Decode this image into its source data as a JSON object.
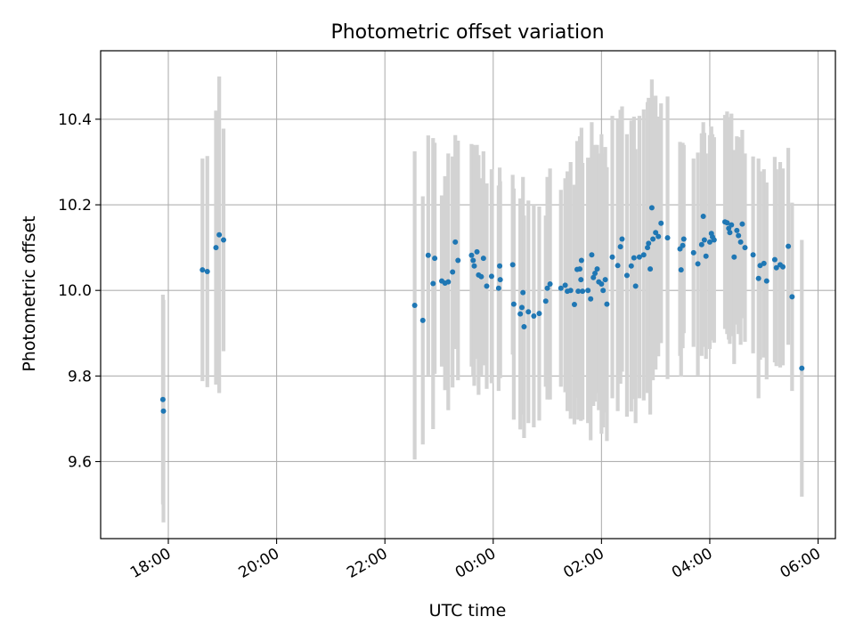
{
  "chart_data": {
    "type": "scatter",
    "title": "Photometric offset variation",
    "xlabel": "UTC time",
    "ylabel": "Photometric offset",
    "grid": true,
    "x_unit": "hours since 00:00 UTC",
    "xlim": [
      -7.25,
      6.32
    ],
    "ylim": [
      9.42,
      10.56
    ],
    "xticks": [
      {
        "value": -6,
        "label": "18:00"
      },
      {
        "value": -4,
        "label": "20:00"
      },
      {
        "value": -2,
        "label": "22:00"
      },
      {
        "value": 0,
        "label": "00:00"
      },
      {
        "value": 2,
        "label": "02:00"
      },
      {
        "value": 4,
        "label": "04:00"
      },
      {
        "value": 6,
        "label": "06:00"
      }
    ],
    "yticks": [
      {
        "value": 9.6,
        "label": "9.6"
      },
      {
        "value": 9.8,
        "label": "9.8"
      },
      {
        "value": 10.0,
        "label": "10.0"
      },
      {
        "value": 10.2,
        "label": "10.2"
      },
      {
        "value": 10.4,
        "label": "10.4"
      }
    ],
    "series": [
      {
        "name": "Photometric offset",
        "marker_color": "#1f77b4",
        "errorbar_color": "#d3d3d3",
        "points": [
          [
            -6.1,
            9.745,
            0.245
          ],
          [
            -6.09,
            9.718,
            0.26
          ],
          [
            -5.37,
            10.048,
            0.26
          ],
          [
            -5.28,
            10.044,
            0.27
          ],
          [
            -5.12,
            10.1,
            0.32
          ],
          [
            -5.06,
            10.13,
            0.37
          ],
          [
            -4.98,
            10.118,
            0.26
          ],
          [
            -1.45,
            9.965,
            0.36
          ],
          [
            -1.3,
            9.93,
            0.29
          ],
          [
            -1.2,
            10.082,
            0.28
          ],
          [
            -1.11,
            10.016,
            0.34
          ],
          [
            -1.08,
            10.075,
            0.27
          ],
          [
            -0.95,
            10.022,
            0.2
          ],
          [
            -0.89,
            10.017,
            0.25
          ],
          [
            -0.83,
            10.02,
            0.3
          ],
          [
            -0.75,
            10.043,
            0.27
          ],
          [
            -0.7,
            10.113,
            0.25
          ],
          [
            -0.65,
            10.07,
            0.28
          ],
          [
            -0.4,
            10.082,
            0.26
          ],
          [
            -0.37,
            10.07,
            0.27
          ],
          [
            -0.35,
            10.057,
            0.28
          ],
          [
            -0.3,
            10.09,
            0.25
          ],
          [
            -0.27,
            10.036,
            0.28
          ],
          [
            -0.22,
            10.032,
            0.23
          ],
          [
            -0.18,
            10.075,
            0.25
          ],
          [
            -0.12,
            10.01,
            0.24
          ],
          [
            -0.03,
            10.033,
            0.25
          ],
          [
            0.1,
            10.005,
            0.24
          ],
          [
            0.12,
            10.057,
            0.23
          ],
          [
            0.13,
            10.025,
            0.23
          ],
          [
            0.36,
            10.06,
            0.21
          ],
          [
            0.38,
            9.968,
            0.27
          ],
          [
            0.5,
            9.945,
            0.27
          ],
          [
            0.53,
            9.96,
            0.25
          ],
          [
            0.55,
            9.995,
            0.27
          ],
          [
            0.57,
            9.915,
            0.26
          ],
          [
            0.65,
            9.95,
            0.26
          ],
          [
            0.75,
            9.94,
            0.26
          ],
          [
            0.85,
            9.946,
            0.25
          ],
          [
            0.97,
            9.975,
            0.2
          ],
          [
            1.0,
            10.005,
            0.26
          ],
          [
            1.05,
            10.015,
            0.27
          ],
          [
            1.25,
            10.005,
            0.23
          ],
          [
            1.33,
            10.012,
            0.25
          ],
          [
            1.37,
            9.998,
            0.28
          ],
          [
            1.43,
            10.0,
            0.3
          ],
          [
            1.5,
            9.967,
            0.28
          ],
          [
            1.55,
            10.049,
            0.3
          ],
          [
            1.57,
            9.998,
            0.3
          ],
          [
            1.6,
            10.05,
            0.31
          ],
          [
            1.62,
            10.025,
            0.33
          ],
          [
            1.63,
            10.07,
            0.31
          ],
          [
            1.65,
            9.998,
            0.3
          ],
          [
            1.75,
            10.0,
            0.31
          ],
          [
            1.8,
            9.98,
            0.33
          ],
          [
            1.82,
            10.083,
            0.31
          ],
          [
            1.85,
            10.03,
            0.3
          ],
          [
            1.88,
            10.04,
            0.3
          ],
          [
            1.92,
            10.05,
            0.29
          ],
          [
            1.95,
            10.02,
            0.3
          ],
          [
            2.0,
            10.015,
            0.35
          ],
          [
            2.03,
            10.0,
            0.32
          ],
          [
            2.07,
            10.025,
            0.31
          ],
          [
            2.1,
            9.968,
            0.32
          ],
          [
            2.2,
            10.078,
            0.33
          ],
          [
            2.3,
            10.058,
            0.34
          ],
          [
            2.35,
            10.102,
            0.32
          ],
          [
            2.38,
            10.12,
            0.31
          ],
          [
            2.47,
            10.035,
            0.33
          ],
          [
            2.55,
            10.057,
            0.34
          ],
          [
            2.6,
            10.076,
            0.33
          ],
          [
            2.63,
            10.01,
            0.32
          ],
          [
            2.7,
            10.078,
            0.33
          ],
          [
            2.78,
            10.083,
            0.34
          ],
          [
            2.85,
            10.1,
            0.34
          ],
          [
            2.87,
            10.11,
            0.34
          ],
          [
            2.9,
            10.05,
            0.34
          ],
          [
            2.93,
            10.193,
            0.3
          ],
          [
            2.95,
            10.12,
            0.33
          ],
          [
            3.0,
            10.135,
            0.32
          ],
          [
            3.05,
            10.126,
            0.28
          ],
          [
            3.1,
            10.157,
            0.28
          ],
          [
            3.22,
            10.123,
            0.33
          ],
          [
            3.45,
            10.097,
            0.25
          ],
          [
            3.47,
            10.048,
            0.25
          ],
          [
            3.5,
            10.105,
            0.24
          ],
          [
            3.52,
            10.12,
            0.22
          ],
          [
            3.7,
            10.088,
            0.22
          ],
          [
            3.78,
            10.062,
            0.26
          ],
          [
            3.85,
            10.107,
            0.26
          ],
          [
            3.88,
            10.173,
            0.22
          ],
          [
            3.9,
            10.118,
            0.25
          ],
          [
            3.93,
            10.08,
            0.24
          ],
          [
            4.0,
            10.113,
            0.25
          ],
          [
            4.03,
            10.133,
            0.25
          ],
          [
            4.05,
            10.125,
            0.24
          ],
          [
            4.08,
            10.118,
            0.24
          ],
          [
            4.28,
            10.16,
            0.25
          ],
          [
            4.32,
            10.158,
            0.26
          ],
          [
            4.35,
            10.145,
            0.26
          ],
          [
            4.37,
            10.135,
            0.26
          ],
          [
            4.4,
            10.153,
            0.26
          ],
          [
            4.45,
            10.078,
            0.25
          ],
          [
            4.5,
            10.14,
            0.22
          ],
          [
            4.53,
            10.128,
            0.23
          ],
          [
            4.57,
            10.113,
            0.24
          ],
          [
            4.6,
            10.155,
            0.22
          ],
          [
            4.65,
            10.1,
            0.22
          ],
          [
            4.8,
            10.083,
            0.23
          ],
          [
            4.9,
            10.028,
            0.28
          ],
          [
            4.93,
            10.058,
            0.22
          ],
          [
            5.0,
            10.063,
            0.22
          ],
          [
            5.05,
            10.022,
            0.23
          ],
          [
            5.2,
            10.072,
            0.24
          ],
          [
            5.23,
            10.053,
            0.23
          ],
          [
            5.3,
            10.06,
            0.24
          ],
          [
            5.35,
            10.055,
            0.23
          ],
          [
            5.45,
            10.103,
            0.23
          ],
          [
            5.52,
            9.985,
            0.22
          ],
          [
            5.7,
            9.818,
            0.3
          ]
        ]
      }
    ]
  }
}
